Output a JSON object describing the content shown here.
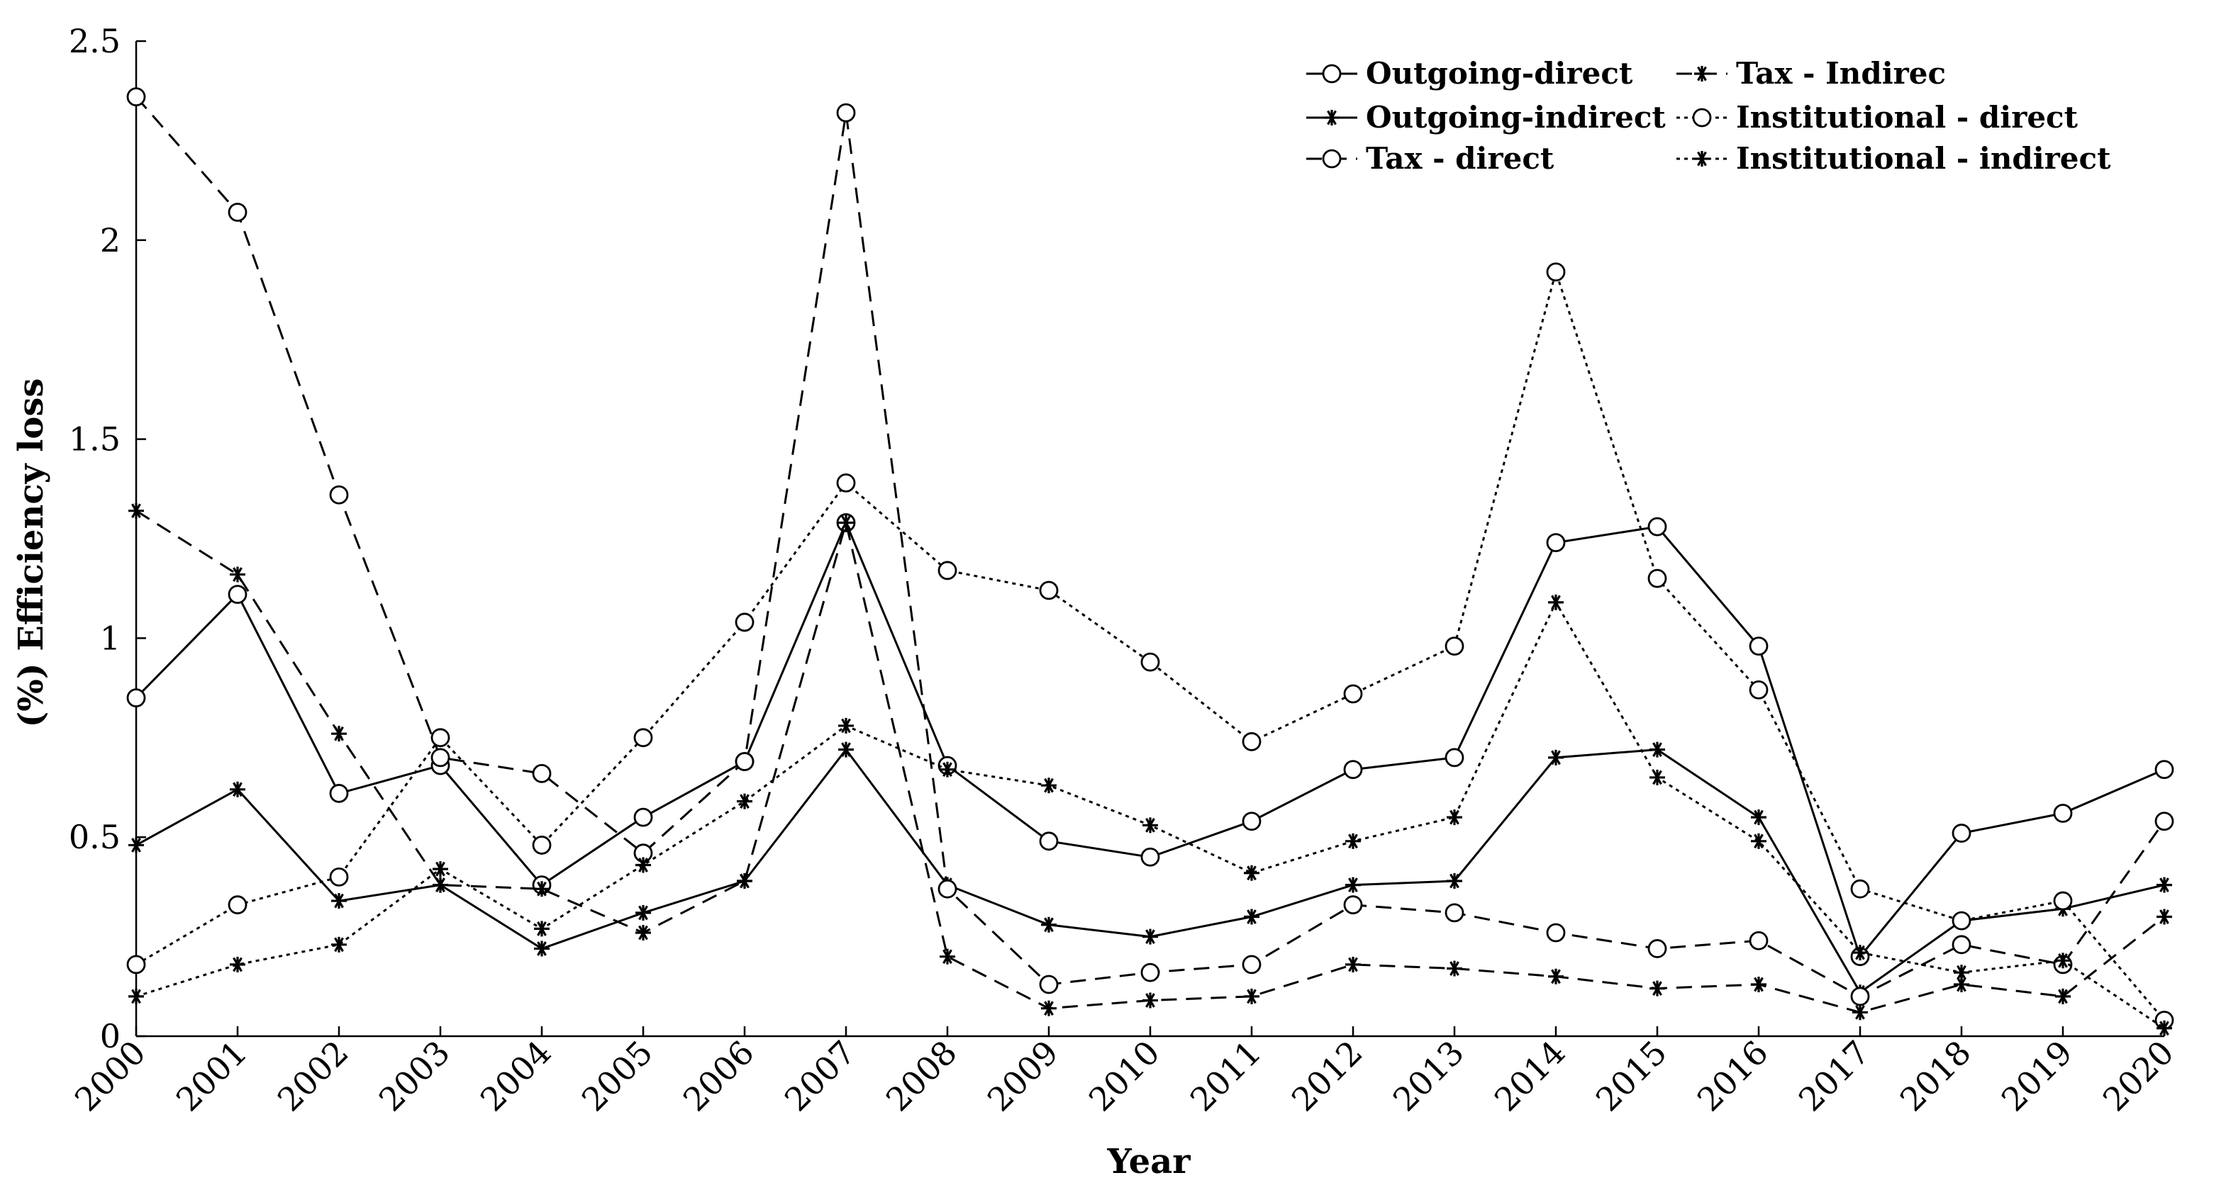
{
  "chart_data": {
    "type": "line",
    "xlabel": "Year",
    "ylabel": "(%)  Efficiency loss",
    "ylim": [
      0,
      2.5
    ],
    "yticks": [
      "0",
      "0.5",
      "1",
      "1.5",
      "2",
      "2.5"
    ],
    "categories": [
      "2000",
      "2001",
      "2002",
      "2003",
      "2004",
      "2005",
      "2006",
      "2007",
      "2008",
      "2009",
      "2010",
      "2011",
      "2012",
      "2013",
      "2014",
      "2015",
      "2016",
      "2017",
      "2018",
      "2019",
      "2020"
    ],
    "legend_position": "top-right",
    "grid": false,
    "series": [
      {
        "name": "Outgoing-direct",
        "line_style": "solid",
        "marker": "circle",
        "values": [
          0.85,
          1.11,
          0.61,
          0.68,
          0.38,
          0.55,
          0.69,
          1.29,
          0.68,
          0.49,
          0.45,
          0.54,
          0.67,
          0.7,
          1.24,
          1.28,
          0.98,
          0.2,
          0.51,
          0.56,
          0.67
        ]
      },
      {
        "name": "Outgoing-indirect",
        "line_style": "solid",
        "marker": "asterisk",
        "values": [
          0.48,
          0.62,
          0.34,
          0.38,
          0.22,
          0.31,
          0.39,
          0.72,
          0.38,
          0.28,
          0.25,
          0.3,
          0.38,
          0.39,
          0.7,
          0.72,
          0.55,
          0.11,
          0.29,
          0.32,
          0.38
        ]
      },
      {
        "name": "Tax - direct",
        "line_style": "dashed",
        "marker": "circle",
        "values": [
          2.36,
          2.07,
          1.36,
          0.7,
          0.66,
          0.46,
          0.69,
          2.32,
          0.37,
          0.13,
          0.16,
          0.18,
          0.33,
          0.31,
          0.26,
          0.22,
          0.24,
          0.1,
          0.23,
          0.18,
          0.54
        ]
      },
      {
        "name": "Tax - Indirec",
        "line_style": "dashed",
        "marker": "asterisk",
        "values": [
          1.32,
          1.16,
          0.76,
          0.38,
          0.37,
          0.26,
          0.39,
          1.29,
          0.2,
          0.07,
          0.09,
          0.1,
          0.18,
          0.17,
          0.15,
          0.12,
          0.13,
          0.06,
          0.13,
          0.1,
          0.3
        ]
      },
      {
        "name": "Institutional - direct",
        "line_style": "dotted",
        "marker": "circle",
        "values": [
          0.18,
          0.33,
          0.4,
          0.75,
          0.48,
          0.75,
          1.04,
          1.39,
          1.17,
          1.12,
          0.94,
          0.74,
          0.86,
          0.98,
          1.92,
          1.15,
          0.87,
          0.37,
          0.29,
          0.34,
          0.04
        ]
      },
      {
        "name": "Institutional - indirect",
        "line_style": "dotted",
        "marker": "asterisk",
        "values": [
          0.1,
          0.18,
          0.23,
          0.42,
          0.27,
          0.43,
          0.59,
          0.78,
          0.67,
          0.63,
          0.53,
          0.41,
          0.49,
          0.55,
          1.09,
          0.65,
          0.49,
          0.21,
          0.16,
          0.19,
          0.02
        ]
      }
    ],
    "legend_order": [
      0,
      3,
      1,
      4,
      2,
      5
    ],
    "colors": {
      "line": "#000000",
      "background": "#ffffff"
    }
  }
}
